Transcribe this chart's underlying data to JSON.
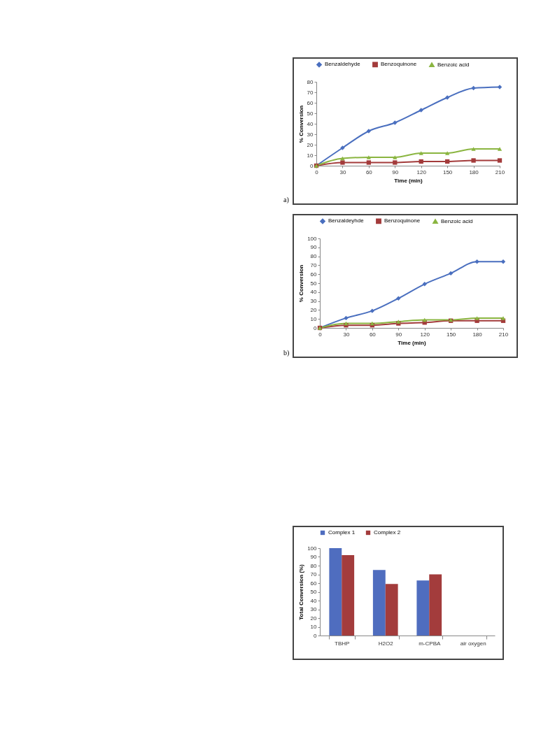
{
  "chart_data": [
    {
      "type": "line",
      "xlabel": "Time (min)",
      "ylabel": "% Conversion",
      "annotations": [
        "a)"
      ],
      "x": [
        0,
        30,
        60,
        90,
        120,
        150,
        180,
        210
      ],
      "xlim": [
        0,
        210
      ],
      "xticks": [
        0,
        30,
        60,
        90,
        120,
        150,
        180,
        210
      ],
      "ylim": [
        0,
        80
      ],
      "yticks": [
        0,
        10,
        20,
        30,
        40,
        50,
        60,
        70,
        80
      ],
      "legend": "top",
      "series": [
        {
          "name": "Benzaldehyde",
          "color": "#4a6fbf",
          "marker": "diamond",
          "values": [
            0,
            17,
            33,
            41,
            53,
            65,
            74,
            75
          ]
        },
        {
          "name": "Benzoquinone",
          "color": "#a33b3b",
          "marker": "square",
          "values": [
            0,
            3,
            3,
            3,
            4,
            4,
            5,
            5
          ]
        },
        {
          "name": "Benzoic acid",
          "color": "#8ab540",
          "marker": "triangle",
          "values": [
            0,
            7,
            8,
            8,
            12,
            12,
            16,
            16
          ]
        }
      ]
    },
    {
      "type": "line",
      "xlabel": "Time (min)",
      "ylabel": "% Conversion",
      "annotations": [
        "b)"
      ],
      "x": [
        0,
        30,
        60,
        90,
        120,
        150,
        180,
        210
      ],
      "xlim": [
        0,
        210
      ],
      "xticks": [
        0,
        30,
        60,
        90,
        120,
        150,
        180,
        210
      ],
      "ylim": [
        0,
        100
      ],
      "yticks": [
        0,
        10,
        20,
        30,
        40,
        50,
        60,
        70,
        80,
        90,
        100
      ],
      "legend": "top",
      "series": [
        {
          "name": "Benzaldeyhde",
          "color": "#4a6fbf",
          "marker": "diamond",
          "values": [
            0,
            11,
            19,
            33,
            49,
            61,
            74,
            74
          ]
        },
        {
          "name": "Benzoquinone",
          "color": "#a33b3b",
          "marker": "square",
          "values": [
            0,
            3,
            3,
            5,
            6,
            8,
            8,
            8
          ]
        },
        {
          "name": "Benzoic acid",
          "color": "#8ab540",
          "marker": "triangle",
          "values": [
            0,
            5,
            5,
            7,
            9,
            9,
            11,
            11
          ]
        }
      ]
    },
    {
      "type": "bar",
      "ylabel": "Total Conversion (%)",
      "categories": [
        "TBHP",
        "H2O2",
        "m-CPBA",
        "air oxygen"
      ],
      "ylim": [
        0,
        100
      ],
      "yticks": [
        0,
        10,
        20,
        30,
        40,
        50,
        60,
        70,
        80,
        90,
        100
      ],
      "legend": "top",
      "series": [
        {
          "name": "Complex 1",
          "color": "#4f6dbf",
          "values": [
            100,
            75,
            63,
            0
          ]
        },
        {
          "name": "Complex 2",
          "color": "#a33c3c",
          "values": [
            92,
            59,
            70,
            0
          ]
        }
      ]
    }
  ]
}
